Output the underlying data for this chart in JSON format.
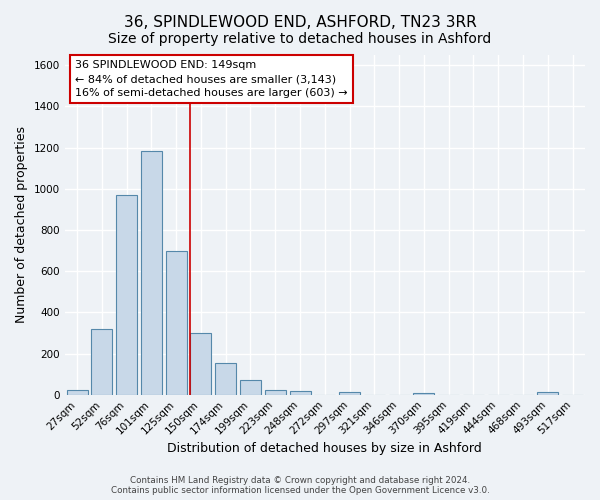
{
  "title": "36, SPINDLEWOOD END, ASHFORD, TN23 3RR",
  "subtitle": "Size of property relative to detached houses in Ashford",
  "xlabel": "Distribution of detached houses by size in Ashford",
  "ylabel": "Number of detached properties",
  "categories": [
    "27sqm",
    "52sqm",
    "76sqm",
    "101sqm",
    "125sqm",
    "150sqm",
    "174sqm",
    "199sqm",
    "223sqm",
    "248sqm",
    "272sqm",
    "297sqm",
    "321sqm",
    "346sqm",
    "370sqm",
    "395sqm",
    "419sqm",
    "444sqm",
    "468sqm",
    "493sqm",
    "517sqm"
  ],
  "values": [
    25,
    320,
    970,
    1185,
    700,
    300,
    155,
    70,
    25,
    18,
    0,
    15,
    0,
    0,
    10,
    0,
    0,
    0,
    0,
    15,
    0
  ],
  "bar_color": "#c8d8e8",
  "bar_edge_color": "#5588aa",
  "vline_index": 5,
  "vline_color": "#cc0000",
  "annotation_box_text": "36 SPINDLEWOOD END: 149sqm\n← 84% of detached houses are smaller (3,143)\n16% of semi-detached houses are larger (603) →",
  "annotation_box_edgecolor": "#cc0000",
  "ylim": [
    0,
    1650
  ],
  "yticks": [
    0,
    200,
    400,
    600,
    800,
    1000,
    1200,
    1400,
    1600
  ],
  "bg_color": "#eef2f6",
  "axes_bg_color": "#eef2f6",
  "grid_color": "#ffffff",
  "footer_line1": "Contains HM Land Registry data © Crown copyright and database right 2024.",
  "footer_line2": "Contains public sector information licensed under the Open Government Licence v3.0.",
  "title_fontsize": 11,
  "subtitle_fontsize": 10,
  "tick_fontsize": 7.5,
  "label_fontsize": 9,
  "annotation_fontsize": 8.0
}
